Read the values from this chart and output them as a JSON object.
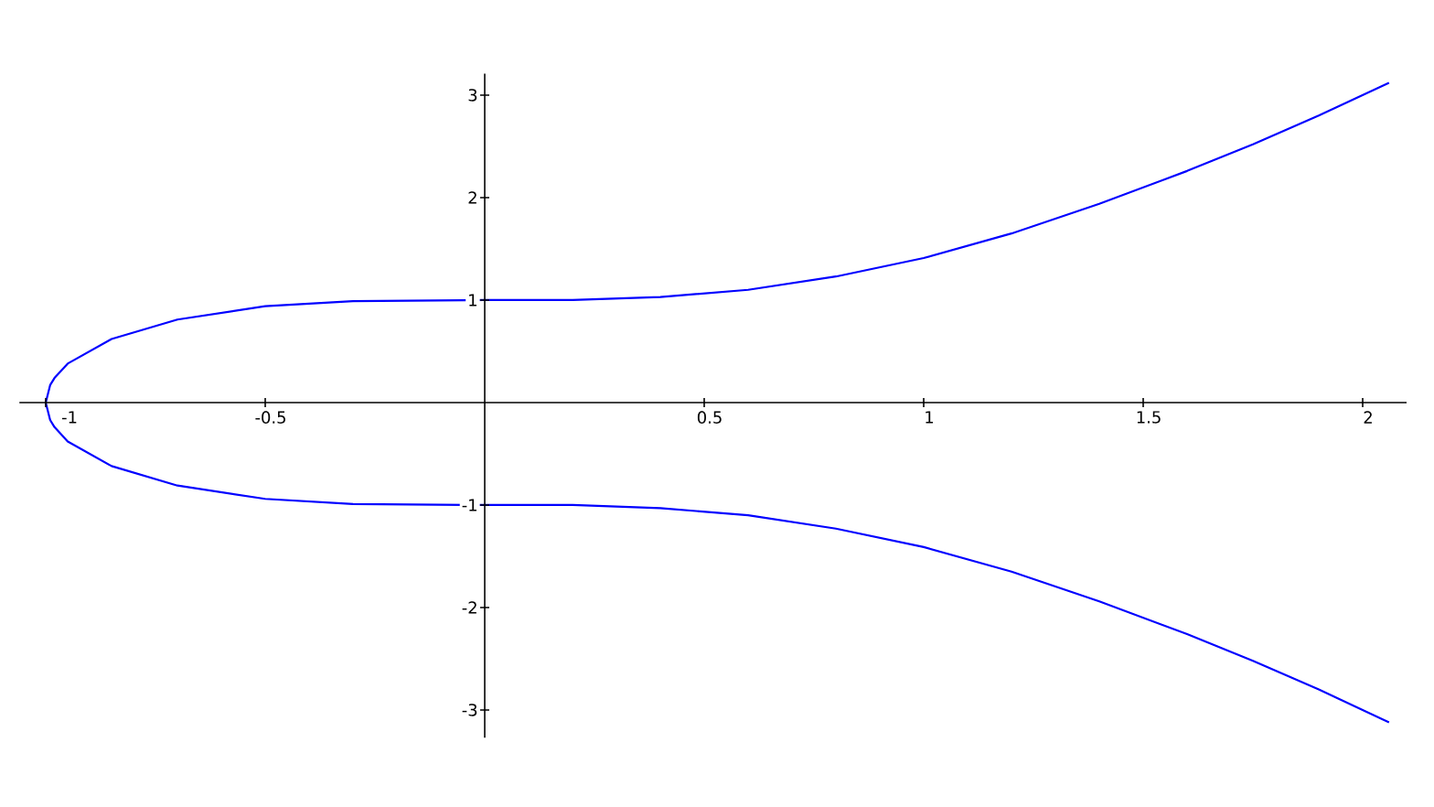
{
  "chart_data": {
    "type": "line",
    "xlim": [
      -1.06,
      2.1
    ],
    "ylim": [
      -3.27,
      3.21
    ],
    "xticks": [
      -1,
      -0.5,
      0.5,
      1,
      1.5,
      2
    ],
    "yticks": [
      -3,
      -2,
      -1,
      1,
      2,
      3
    ],
    "grid": false,
    "marker": "none",
    "line_style": "solid",
    "series": [
      {
        "color": "#0000ff",
        "x": [
          2.06,
          1.9,
          1.75,
          1.6,
          1.4,
          1.2,
          1.0,
          0.8,
          0.6,
          0.4,
          0.2,
          0,
          -0.3,
          -0.5,
          -0.7,
          -0.85,
          -0.95,
          -0.98,
          -0.99,
          -1,
          -0.99,
          -0.98,
          -0.95,
          -0.85,
          -0.7,
          -0.5,
          -0.3,
          0,
          0.2,
          0.4,
          0.6,
          0.8,
          1.0,
          1.2,
          1.4,
          1.6,
          1.75,
          1.9,
          2.06
        ],
        "values": [
          3.12,
          2.8,
          2.52,
          2.26,
          1.94,
          1.65,
          1.41,
          1.23,
          1.1,
          1.03,
          1.0,
          1.0,
          0.99,
          0.94,
          0.81,
          0.62,
          0.38,
          0.24,
          0.17,
          0,
          -0.17,
          -0.24,
          -0.38,
          -0.62,
          -0.81,
          -0.94,
          -0.99,
          -1.0,
          -1.0,
          -1.03,
          -1.1,
          -1.23,
          -1.41,
          -1.65,
          -1.94,
          -2.26,
          -2.52,
          -2.8,
          -3.12
        ]
      }
    ]
  }
}
